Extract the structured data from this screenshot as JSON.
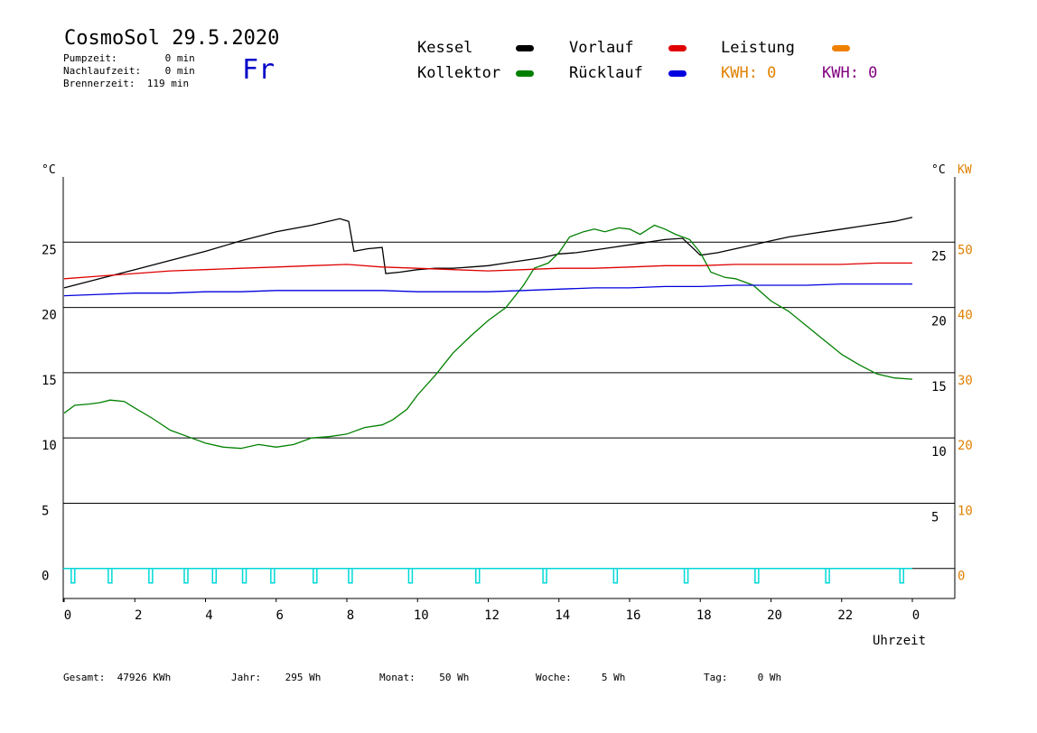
{
  "header": {
    "title": "CosmoSol 29.5.2020",
    "weekday": "Fr",
    "pumpzeit": "Pumpzeit:        0 min",
    "nachlaufzeit": "Nachlaufzeit:    0 min",
    "brennerzeit": "Brennerzeit:  119 min"
  },
  "legend": {
    "kessel": {
      "label": "Kessel",
      "color": "#000000"
    },
    "kollektor": {
      "label": "Kollektor",
      "color": "#008000"
    },
    "vorlauf": {
      "label": "Vorlauf",
      "color": "#e00000"
    },
    "ruecklauf": {
      "label": "Rücklauf",
      "color": "#0000e0"
    },
    "leistung": {
      "label": "Leistung",
      "color": "#f08000"
    },
    "kwh_orange": "KWH: 0",
    "kwh_purple": "KWH: 0",
    "kwh_orange_color": "#e08000",
    "kwh_purple_color": "#800080"
  },
  "footer": {
    "gesamt": "Gesamt:  47926 KWh",
    "jahr": "Jahr:    295 Wh",
    "monat": "Monat:    50 Wh",
    "woche": "Woche:     5 Wh",
    "tag": "Tag:     0 Wh"
  },
  "chart_data": {
    "type": "line",
    "xlabel": "Uhrzeit",
    "ylabel_left": "°C",
    "ylabel_right": "°C",
    "ylabel_right2": "KW",
    "xlim": [
      0,
      24
    ],
    "ylim": [
      -2.3,
      30
    ],
    "x_ticks": [
      "0",
      "2",
      "4",
      "6",
      "8",
      "10",
      "12",
      "14",
      "16",
      "18",
      "20",
      "22",
      "0"
    ],
    "y_ticks_left": [
      0,
      5,
      10,
      15,
      20,
      25
    ],
    "y_ticks_right": [
      5,
      10,
      15,
      20,
      25
    ],
    "y_ticks_kw": [
      0,
      10,
      20,
      30,
      40,
      50
    ],
    "grid": "horizontal",
    "series": [
      {
        "name": "Kessel",
        "color": "#000000",
        "x": [
          0,
          1,
          2,
          3,
          4,
          5,
          6,
          7,
          7.8,
          8.05,
          8.2,
          8.6,
          9.0,
          9.1,
          9.5,
          10,
          10.5,
          11,
          11.5,
          12,
          12.5,
          13,
          13.5,
          14,
          14.5,
          15,
          15.5,
          16,
          16.5,
          17,
          17.5,
          18,
          18.5,
          19,
          19.5,
          20,
          20.5,
          21,
          21.5,
          22,
          22.5,
          23,
          23.5,
          24
        ],
        "y": [
          21.5,
          22.2,
          22.9,
          23.6,
          24.3,
          25.1,
          25.8,
          26.3,
          26.8,
          26.6,
          24.3,
          24.5,
          24.6,
          22.6,
          22.7,
          22.9,
          23.0,
          23.0,
          23.1,
          23.2,
          23.4,
          23.6,
          23.8,
          24.1,
          24.2,
          24.4,
          24.6,
          24.8,
          25.0,
          25.2,
          25.3,
          24.0,
          24.2,
          24.5,
          24.8,
          25.1,
          25.4,
          25.6,
          25.8,
          26.0,
          26.2,
          26.4,
          26.6,
          26.9
        ]
      },
      {
        "name": "Kollektor",
        "color": "#008000",
        "x": [
          0,
          0.3,
          0.7,
          1,
          1.3,
          1.7,
          2,
          2.5,
          3,
          3.5,
          4,
          4.5,
          5,
          5.5,
          6,
          6.5,
          7,
          7.5,
          8,
          8.5,
          9,
          9.3,
          9.7,
          10,
          10.5,
          11,
          11.5,
          12,
          12.5,
          13,
          13.3,
          13.7,
          14,
          14.3,
          14.7,
          15,
          15.3,
          15.7,
          16,
          16.3,
          16.7,
          17,
          17.3,
          17.7,
          18,
          18.3,
          18.7,
          19,
          19.5,
          20,
          20.5,
          21,
          21.5,
          22,
          22.5,
          23,
          23.5,
          24
        ],
        "y": [
          11.9,
          12.5,
          12.6,
          12.7,
          12.9,
          12.8,
          12.3,
          11.5,
          10.6,
          10.1,
          9.6,
          9.3,
          9.2,
          9.5,
          9.3,
          9.5,
          10.0,
          10.1,
          10.3,
          10.8,
          11.0,
          11.4,
          12.2,
          13.3,
          14.8,
          16.5,
          17.8,
          19.0,
          20.0,
          21.7,
          23.0,
          23.4,
          24.2,
          25.4,
          25.8,
          26.0,
          25.8,
          26.1,
          26.0,
          25.6,
          26.3,
          26.0,
          25.6,
          25.2,
          24.2,
          22.7,
          22.3,
          22.2,
          21.7,
          20.5,
          19.7,
          18.6,
          17.5,
          16.4,
          15.6,
          14.9,
          14.6,
          14.5
        ]
      },
      {
        "name": "Vorlauf",
        "color": "#e00000",
        "x": [
          0,
          1,
          2,
          3,
          4,
          5,
          6,
          7,
          8,
          9,
          10,
          11,
          12,
          13,
          14,
          15,
          16,
          17,
          18,
          19,
          20,
          21,
          22,
          23,
          24
        ],
        "y": [
          22.2,
          22.4,
          22.6,
          22.8,
          22.9,
          23.0,
          23.1,
          23.2,
          23.3,
          23.1,
          23.0,
          22.9,
          22.8,
          22.9,
          23.0,
          23.0,
          23.1,
          23.2,
          23.2,
          23.3,
          23.3,
          23.3,
          23.3,
          23.4,
          23.4
        ]
      },
      {
        "name": "Rücklauf",
        "color": "#0000e0",
        "x": [
          0,
          1,
          2,
          3,
          4,
          5,
          6,
          7,
          8,
          9,
          10,
          11,
          12,
          13,
          14,
          15,
          16,
          17,
          18,
          19,
          20,
          21,
          22,
          23,
          24
        ],
        "y": [
          20.9,
          21.0,
          21.1,
          21.1,
          21.2,
          21.2,
          21.3,
          21.3,
          21.3,
          21.3,
          21.2,
          21.2,
          21.2,
          21.3,
          21.4,
          21.5,
          21.5,
          21.6,
          21.6,
          21.7,
          21.7,
          21.7,
          21.8,
          21.8,
          21.8
        ]
      }
    ],
    "pump_pulses_x": [
      0.25,
      1.3,
      2.45,
      3.45,
      4.25,
      5.1,
      5.9,
      7.1,
      8.1,
      9.8,
      11.7,
      13.6,
      15.6,
      17.6,
      19.6,
      21.6,
      23.7
    ]
  }
}
